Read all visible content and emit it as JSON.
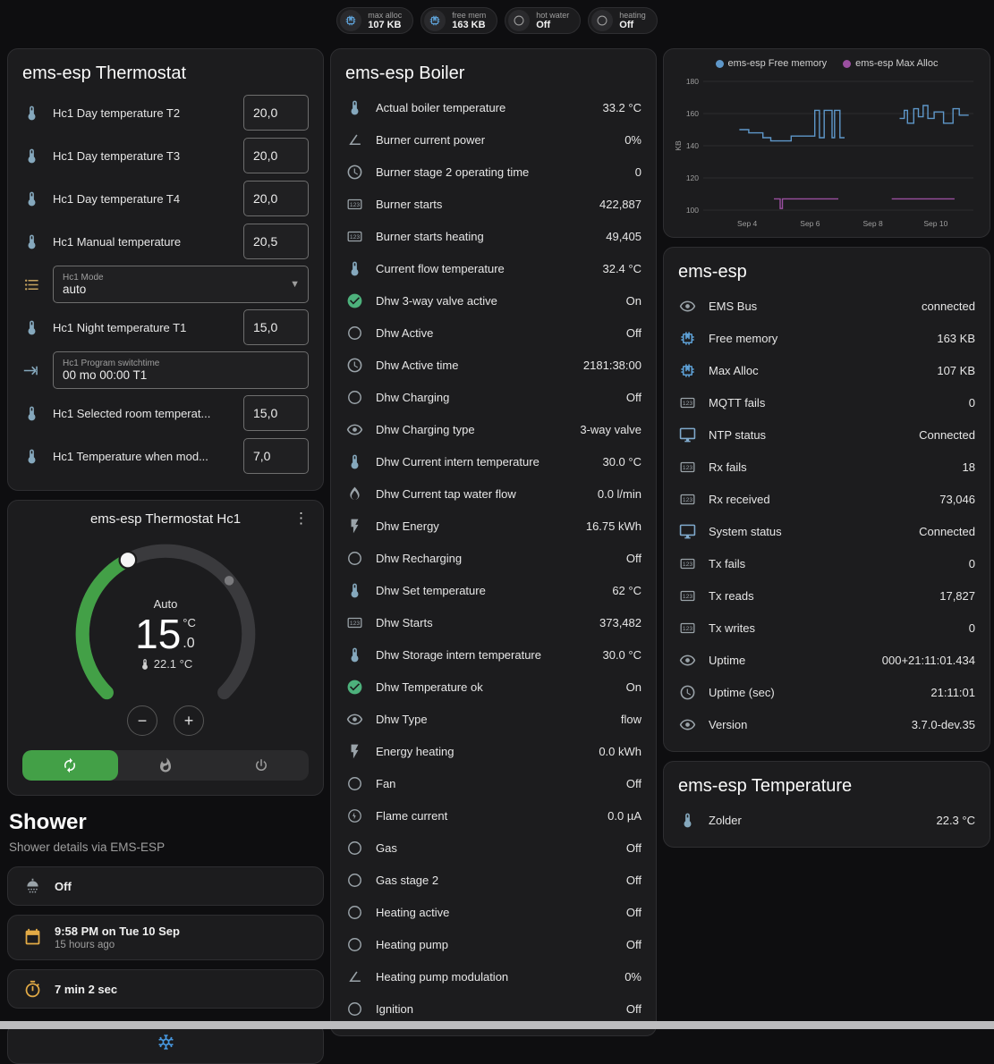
{
  "badges": [
    {
      "icon": "chip",
      "icon_color": "#5d9fd4",
      "label": "max alloc",
      "value": "107 KB"
    },
    {
      "icon": "chip",
      "icon_color": "#5d9fd4",
      "label": "free mem",
      "value": "163 KB"
    },
    {
      "icon": "circle",
      "icon_color": "#9e9e9e",
      "label": "hot water",
      "value": "Off"
    },
    {
      "icon": "circle",
      "icon_color": "#9e9e9e",
      "label": "heating",
      "value": "Off"
    }
  ],
  "thermostat": {
    "title": "ems-esp Thermostat",
    "rows_top": [
      {
        "icon": "thermometer",
        "label": "Hc1 Day temperature T2",
        "value": "20,0"
      },
      {
        "icon": "thermometer",
        "label": "Hc1 Day temperature T3",
        "value": "20,0"
      },
      {
        "icon": "thermometer",
        "label": "Hc1 Day temperature T4",
        "value": "20,0"
      },
      {
        "icon": "thermometer",
        "label": "Hc1 Manual temperature",
        "value": "20,5"
      }
    ],
    "mode": {
      "label": "Hc1 Mode",
      "value": "auto"
    },
    "rows_mid": [
      {
        "icon": "thermometer",
        "label": "Hc1 Night temperature T1",
        "value": "15,0"
      }
    ],
    "program": {
      "label": "Hc1 Program switchtime",
      "value": "00 mo 00:00 T1"
    },
    "rows_bottom": [
      {
        "icon": "thermometer",
        "label": "Hc1 Selected room temperat...",
        "value": "15,0"
      },
      {
        "icon": "thermometer",
        "label": "Hc1 Temperature when mod...",
        "value": "7,0"
      }
    ]
  },
  "hc1": {
    "title": "ems-esp Thermostat Hc1",
    "mode_label": "Auto",
    "target_int": "15",
    "target_unit": "°C",
    "target_dec": ".0",
    "current": "22.1 °C",
    "decrease_label": "−",
    "increase_label": "+",
    "accent_green": "#43a047"
  },
  "shower": {
    "heading": "Shower",
    "subheading": "Shower details via EMS-ESP",
    "state": "Off",
    "last_time": "9:58 PM on Tue 10 Sep",
    "last_relative": "15 hours ago",
    "duration": "7 min 2 sec"
  },
  "boiler": {
    "title": "ems-esp Boiler",
    "rows": [
      {
        "icon": "thermometer",
        "icon_color": "#85a8bd",
        "label": "Actual boiler temperature",
        "value": "33.2 °C"
      },
      {
        "icon": "angle",
        "label": "Burner current power",
        "value": "0%"
      },
      {
        "icon": "clock",
        "label": "Burner stage 2 operating time",
        "value": "0"
      },
      {
        "icon": "counter",
        "label": "Burner starts",
        "value": "422,887"
      },
      {
        "icon": "counter",
        "label": "Burner starts heating",
        "value": "49,405"
      },
      {
        "icon": "thermometer",
        "icon_color": "#85a8bd",
        "label": "Current flow temperature",
        "value": "32.4 °C"
      },
      {
        "icon": "check-circle",
        "icon_color": "#4db17c",
        "label": "Dhw 3-way valve active",
        "value": "On"
      },
      {
        "icon": "circle",
        "label": "Dhw Active",
        "value": "Off"
      },
      {
        "icon": "clock",
        "label": "Dhw Active time",
        "value": "2181:38:00"
      },
      {
        "icon": "circle",
        "label": "Dhw Charging",
        "value": "Off"
      },
      {
        "icon": "eye",
        "label": "Dhw Charging type",
        "value": "3-way valve"
      },
      {
        "icon": "thermometer",
        "icon_color": "#85a8bd",
        "label": "Dhw Current intern temperature",
        "value": "30.0 °C"
      },
      {
        "icon": "water",
        "label": "Dhw Current tap water flow",
        "value": "0.0 l/min"
      },
      {
        "icon": "flash",
        "label": "Dhw Energy",
        "value": "16.75 kWh"
      },
      {
        "icon": "circle",
        "label": "Dhw Recharging",
        "value": "Off"
      },
      {
        "icon": "thermometer",
        "icon_color": "#85a8bd",
        "label": "Dhw Set temperature",
        "value": "62 °C"
      },
      {
        "icon": "counter",
        "label": "Dhw Starts",
        "value": "373,482"
      },
      {
        "icon": "thermometer",
        "icon_color": "#85a8bd",
        "label": "Dhw Storage intern temperature",
        "value": "30.0 °C"
      },
      {
        "icon": "check-circle",
        "icon_color": "#4db17c",
        "label": "Dhw Temperature ok",
        "value": "On"
      },
      {
        "icon": "eye",
        "label": "Dhw Type",
        "value": "flow"
      },
      {
        "icon": "flash",
        "label": "Energy heating",
        "value": "0.0 kWh"
      },
      {
        "icon": "circle",
        "label": "Fan",
        "value": "Off"
      },
      {
        "icon": "flash-circle",
        "label": "Flame current",
        "value": "0.0 µA"
      },
      {
        "icon": "circle",
        "label": "Gas",
        "value": "Off"
      },
      {
        "icon": "circle",
        "label": "Gas stage 2",
        "value": "Off"
      },
      {
        "icon": "circle",
        "label": "Heating active",
        "value": "Off"
      },
      {
        "icon": "circle",
        "label": "Heating pump",
        "value": "Off"
      },
      {
        "icon": "angle",
        "label": "Heating pump modulation",
        "value": "0%"
      },
      {
        "icon": "circle",
        "label": "Ignition",
        "value": "Off"
      }
    ]
  },
  "ems": {
    "title": "ems-esp",
    "rows": [
      {
        "icon": "eye",
        "label": "EMS Bus",
        "value": "connected"
      },
      {
        "icon": "chip",
        "icon_color": "#5d9fd4",
        "label": "Free memory",
        "value": "163 KB"
      },
      {
        "icon": "chip",
        "icon_color": "#5d9fd4",
        "label": "Max Alloc",
        "value": "107 KB"
      },
      {
        "icon": "counter",
        "label": "MQTT fails",
        "value": "0"
      },
      {
        "icon": "monitor",
        "icon_color": "#7fa9cc",
        "label": "NTP status",
        "value": "Connected"
      },
      {
        "icon": "counter",
        "label": "Rx fails",
        "value": "18"
      },
      {
        "icon": "counter",
        "label": "Rx received",
        "value": "73,046"
      },
      {
        "icon": "monitor",
        "icon_color": "#7fa9cc",
        "label": "System status",
        "value": "Connected"
      },
      {
        "icon": "counter",
        "label": "Tx fails",
        "value": "0"
      },
      {
        "icon": "counter",
        "label": "Tx reads",
        "value": "17,827"
      },
      {
        "icon": "counter",
        "label": "Tx writes",
        "value": "0"
      },
      {
        "icon": "eye",
        "label": "Uptime",
        "value": "000+21:11:01.434"
      },
      {
        "icon": "clock",
        "label": "Uptime (sec)",
        "value": "21:11:01"
      },
      {
        "icon": "eye",
        "label": "Version",
        "value": "3.7.0-dev.35"
      }
    ]
  },
  "temperature": {
    "title": "ems-esp Temperature",
    "rows": [
      {
        "icon": "thermometer",
        "icon_color": "#85a8bd",
        "label": "Zolder",
        "value": "22.3 °C"
      }
    ]
  },
  "chart_data": {
    "type": "line",
    "ylabel": "KB",
    "ylim": [
      100,
      180
    ],
    "yticks": [
      100,
      120,
      140,
      160,
      180
    ],
    "xlim": [
      2.6,
      11.2
    ],
    "xticks": [
      {
        "x": 4,
        "label": "Sep 4"
      },
      {
        "x": 6,
        "label": "Sep 6"
      },
      {
        "x": 8,
        "label": "Sep 8"
      },
      {
        "x": 10,
        "label": "Sep 10"
      }
    ],
    "grid": true,
    "legend_position": "top",
    "series": [
      {
        "name": "ems-esp Free memory",
        "color": "#5e97c9",
        "points": [
          [
            3.75,
            150
          ],
          [
            4.05,
            150
          ],
          [
            4.05,
            148
          ],
          [
            4.5,
            148
          ],
          [
            4.5,
            145
          ],
          [
            4.75,
            145
          ],
          [
            4.75,
            143
          ],
          [
            5.4,
            143
          ],
          [
            5.4,
            146
          ],
          [
            6.15,
            146
          ],
          [
            6.15,
            162
          ],
          [
            6.3,
            162
          ],
          [
            6.3,
            145
          ],
          [
            6.45,
            145
          ],
          [
            6.45,
            162
          ],
          [
            6.7,
            162
          ],
          [
            6.7,
            145
          ],
          [
            6.78,
            145
          ],
          [
            6.78,
            162
          ],
          [
            6.95,
            162
          ],
          [
            6.95,
            145
          ],
          [
            7.1,
            145
          ],
          null,
          [
            8.85,
            157
          ],
          [
            9.0,
            157
          ],
          [
            9.0,
            162
          ],
          [
            9.1,
            162
          ],
          [
            9.1,
            154
          ],
          [
            9.3,
            154
          ],
          [
            9.3,
            163
          ],
          [
            9.45,
            163
          ],
          [
            9.45,
            158
          ],
          [
            9.6,
            158
          ],
          [
            9.6,
            165
          ],
          [
            9.75,
            165
          ],
          [
            9.75,
            157
          ],
          [
            9.95,
            157
          ],
          [
            9.95,
            161
          ],
          [
            10.25,
            161
          ],
          [
            10.25,
            154
          ],
          [
            10.55,
            154
          ],
          [
            10.55,
            163
          ],
          [
            10.75,
            163
          ],
          [
            10.75,
            159
          ],
          [
            11.05,
            159
          ]
        ]
      },
      {
        "name": "ems-esp Max Alloc",
        "color": "#9a4fa0",
        "points": [
          [
            4.85,
            107
          ],
          [
            5.05,
            107
          ],
          [
            5.05,
            101
          ],
          [
            5.12,
            101
          ],
          [
            5.12,
            107
          ],
          [
            6.9,
            107
          ],
          null,
          [
            8.6,
            107
          ],
          [
            10.6,
            107
          ]
        ]
      }
    ]
  }
}
